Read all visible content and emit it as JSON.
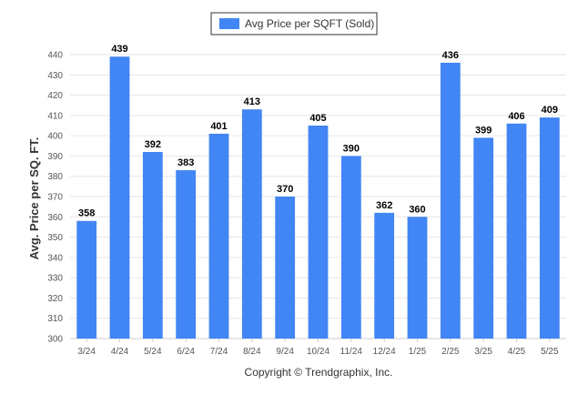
{
  "chart_data": {
    "type": "bar",
    "categories": [
      "3/24",
      "4/24",
      "5/24",
      "6/24",
      "7/24",
      "8/24",
      "9/24",
      "10/24",
      "11/24",
      "12/24",
      "1/25",
      "2/25",
      "3/25",
      "4/25",
      "5/25"
    ],
    "series": [
      {
        "name": "Avg Price per SQFT (Sold)",
        "values": [
          358,
          439,
          392,
          383,
          401,
          413,
          370,
          405,
          390,
          362,
          360,
          436,
          399,
          406,
          409
        ],
        "color": "#4285f4"
      }
    ],
    "ylabel": "Avg. Price per SQ. FT.",
    "ylim": [
      300,
      440
    ],
    "yticks": [
      300,
      310,
      320,
      330,
      340,
      350,
      360,
      370,
      380,
      390,
      400,
      410,
      420,
      430,
      440
    ],
    "grid": true,
    "legend_position": "top-center",
    "data_labels": true
  },
  "footer": {
    "copyright": "Copyright © Trendgraphix, Inc."
  }
}
